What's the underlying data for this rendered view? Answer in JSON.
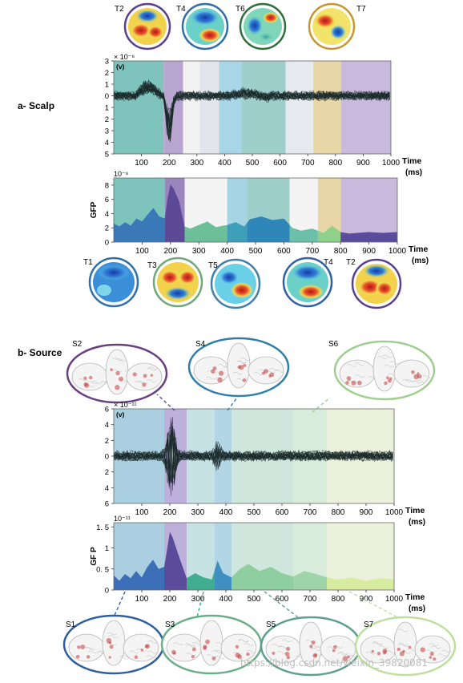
{
  "scalp": {
    "section_label": "a- Scalp",
    "top_maps": [
      {
        "label": "T2",
        "ring": "#5b3f8f"
      },
      {
        "label": "T4",
        "ring": "#2f6fa8"
      },
      {
        "label": "T6",
        "ring": "#2f6f3a"
      },
      {
        "label": "T7",
        "ring": "#c8962e"
      }
    ],
    "bottom_maps": [
      {
        "label": "T1",
        "ring": "#2f6fa8"
      },
      {
        "label": "T3",
        "ring": "#6ea878"
      },
      {
        "label": "T5",
        "ring": "#3f7fa8"
      },
      {
        "label": "T4",
        "ring": "#2f5fa8"
      },
      {
        "label": "T2",
        "ring": "#5b3f8f"
      }
    ]
  },
  "source": {
    "section_label": "b- Source",
    "top_brains": [
      {
        "label": "S2",
        "ring": "#6a3f7f"
      },
      {
        "label": "S4",
        "ring": "#2f7fa8"
      },
      {
        "label": "S6",
        "ring": "#9fcf8f"
      }
    ],
    "bottom_brains": [
      {
        "label": "S1",
        "ring": "#2f5f9f"
      },
      {
        "label": "S3",
        "ring": "#6aaf8a"
      },
      {
        "label": "S5",
        "ring": "#5f9f8f"
      },
      {
        "label": "S7",
        "ring": "#bfdf9f"
      }
    ]
  },
  "chart_data": [
    {
      "type": "line",
      "id": "scalp-eeg",
      "exponent_label": "× 10⁻⁶",
      "ylabel": "(v)",
      "xlabel": "Time",
      "xunit": "(ms)",
      "xlim": [
        0,
        1000
      ],
      "ylim": [
        -5,
        3
      ],
      "xticks": [
        100,
        200,
        300,
        400,
        500,
        600,
        700,
        800,
        900,
        1000
      ],
      "yticks": [
        {
          "v": 3,
          "t": "3"
        },
        {
          "v": 2,
          "t": "2"
        },
        {
          "v": 1,
          "t": "1"
        },
        {
          "v": 0,
          "t": "0"
        },
        {
          "v": -1,
          "t": "1"
        },
        {
          "v": -2,
          "t": "2"
        },
        {
          "v": -3,
          "t": "3"
        },
        {
          "v": -4,
          "t": "4"
        },
        {
          "v": -5,
          "t": "5"
        }
      ],
      "segments": [
        {
          "start": 0,
          "end": 180,
          "color": "#7fc3bd"
        },
        {
          "start": 180,
          "end": 250,
          "color": "#b9a6d0"
        },
        {
          "start": 250,
          "end": 310,
          "color": "#f2f2f2"
        },
        {
          "start": 310,
          "end": 380,
          "color": "#e2e6ea"
        },
        {
          "start": 380,
          "end": 460,
          "color": "#a9d6e6"
        },
        {
          "start": 460,
          "end": 620,
          "color": "#9fcfca"
        },
        {
          "start": 620,
          "end": 720,
          "color": "#e6eaee"
        },
        {
          "start": 720,
          "end": 820,
          "color": "#e8d6a6"
        },
        {
          "start": 820,
          "end": 1000,
          "color": "#c9b9dc"
        }
      ]
    },
    {
      "type": "area",
      "id": "scalp-gfp",
      "exponent_label": "10⁻⁶",
      "ylabel": "GFP",
      "xlabel": "Time",
      "xunit": "(ms)",
      "xlim": [
        0,
        1000
      ],
      "ylim": [
        0,
        9
      ],
      "xticks": [
        100,
        200,
        300,
        400,
        500,
        600,
        700,
        800,
        900,
        1000
      ],
      "yticks": [
        {
          "v": 8,
          "t": "8"
        },
        {
          "v": 6,
          "t": "6"
        },
        {
          "v": 4,
          "t": "4"
        },
        {
          "v": 2,
          "t": "2"
        },
        {
          "v": 0,
          "t": "0"
        }
      ],
      "segments": [
        {
          "start": 0,
          "end": 180,
          "color": "#7fc3bd",
          "fill": "#3a78b8"
        },
        {
          "start": 180,
          "end": 250,
          "color": "#9b85bf",
          "fill": "#5d4a96"
        },
        {
          "start": 250,
          "end": 400,
          "color": "#f4f4f4",
          "fill": "#6cbf99"
        },
        {
          "start": 400,
          "end": 470,
          "color": "#a6d4e4",
          "fill": "#3f9fb8"
        },
        {
          "start": 470,
          "end": 620,
          "color": "#9fcfca",
          "fill": "#2f86b8"
        },
        {
          "start": 620,
          "end": 720,
          "color": "#f4f4f4",
          "fill": "#6cbfa8"
        },
        {
          "start": 720,
          "end": 800,
          "color": "#e8d6a6",
          "fill": "#8fd18a"
        },
        {
          "start": 800,
          "end": 1000,
          "color": "#c9b9dc",
          "fill": "#5a4c9a"
        }
      ],
      "curve": [
        [
          0,
          2.6
        ],
        [
          20,
          2.2
        ],
        [
          40,
          2.8
        ],
        [
          60,
          2.3
        ],
        [
          80,
          3.3
        ],
        [
          100,
          2.9
        ],
        [
          120,
          3.9
        ],
        [
          140,
          4.8
        ],
        [
          160,
          3.6
        ],
        [
          180,
          3.3
        ],
        [
          190,
          6.2
        ],
        [
          200,
          8.1
        ],
        [
          210,
          7.6
        ],
        [
          230,
          5.8
        ],
        [
          250,
          2.2
        ],
        [
          270,
          1.9
        ],
        [
          300,
          2.4
        ],
        [
          330,
          2.9
        ],
        [
          360,
          2.1
        ],
        [
          400,
          2.4
        ],
        [
          430,
          2.8
        ],
        [
          460,
          2.2
        ],
        [
          480,
          3.2
        ],
        [
          520,
          3.6
        ],
        [
          560,
          3.1
        ],
        [
          600,
          3.3
        ],
        [
          630,
          2.0
        ],
        [
          660,
          1.6
        ],
        [
          700,
          1.9
        ],
        [
          740,
          1.3
        ],
        [
          770,
          2.3
        ],
        [
          800,
          1.4
        ],
        [
          830,
          1.2
        ],
        [
          860,
          1.3
        ],
        [
          900,
          1.4
        ],
        [
          950,
          1.3
        ],
        [
          1000,
          1.4
        ]
      ]
    },
    {
      "type": "line",
      "id": "source-signal",
      "exponent_label": "× 10⁻¹¹",
      "ylabel": "(v)",
      "xlabel": "Time",
      "xunit": "(ms)",
      "xlim": [
        0,
        1000
      ],
      "ylim": [
        -6,
        6
      ],
      "xticks": [
        100,
        200,
        300,
        400,
        500,
        600,
        700,
        800,
        900,
        1000
      ],
      "yticks": [
        {
          "v": 6,
          "t": "6"
        },
        {
          "v": 4,
          "t": "4"
        },
        {
          "v": 2,
          "t": "2"
        },
        {
          "v": 0,
          "t": "0"
        },
        {
          "v": -2,
          "t": "2"
        },
        {
          "v": -4,
          "t": "4"
        },
        {
          "v": -6,
          "t": "6"
        }
      ],
      "segments": [
        {
          "start": 0,
          "end": 180,
          "color": "#a9cfe0"
        },
        {
          "start": 180,
          "end": 260,
          "color": "#bdb0dc"
        },
        {
          "start": 260,
          "end": 360,
          "color": "#c7e2e2"
        },
        {
          "start": 360,
          "end": 420,
          "color": "#b3d6e6"
        },
        {
          "start": 420,
          "end": 640,
          "color": "#cfe6dc"
        },
        {
          "start": 640,
          "end": 760,
          "color": "#d8ecdc"
        },
        {
          "start": 760,
          "end": 1000,
          "color": "#ecf1dc"
        }
      ]
    },
    {
      "type": "area",
      "id": "source-gfp",
      "exponent_label": "10⁻¹¹",
      "ylabel": "GF P",
      "xlabel": "Time",
      "xunit": "(ms)",
      "xlim": [
        0,
        1000
      ],
      "ylim": [
        0,
        1.6
      ],
      "xticks": [
        100,
        200,
        300,
        400,
        500,
        600,
        700,
        800,
        900,
        1000
      ],
      "yticks": [
        {
          "v": 1.5,
          "t": "1. 5"
        },
        {
          "v": 1,
          "t": "1"
        },
        {
          "v": 0.5,
          "t": "0. 5"
        },
        {
          "v": 0,
          "t": "0"
        }
      ],
      "segments": [
        {
          "start": 0,
          "end": 180,
          "color": "#a9cfe0",
          "fill": "#3b6fb8"
        },
        {
          "start": 180,
          "end": 260,
          "color": "#bdb0dc",
          "fill": "#5a4c9a"
        },
        {
          "start": 260,
          "end": 360,
          "color": "#c7e2e2",
          "fill": "#3fae8f"
        },
        {
          "start": 360,
          "end": 420,
          "color": "#b3d6e6",
          "fill": "#3f8fc0"
        },
        {
          "start": 420,
          "end": 640,
          "color": "#cfe6dc",
          "fill": "#8fcf9f"
        },
        {
          "start": 640,
          "end": 760,
          "color": "#d8ecdc",
          "fill": "#9fd4a8"
        },
        {
          "start": 760,
          "end": 1000,
          "color": "#ecf1dc",
          "fill": "#d8ec9f"
        }
      ],
      "curve": [
        [
          0,
          0.35
        ],
        [
          20,
          0.22
        ],
        [
          40,
          0.38
        ],
        [
          60,
          0.28
        ],
        [
          80,
          0.45
        ],
        [
          100,
          0.3
        ],
        [
          120,
          0.55
        ],
        [
          140,
          0.72
        ],
        [
          160,
          0.5
        ],
        [
          180,
          0.55
        ],
        [
          190,
          0.95
        ],
        [
          200,
          1.38
        ],
        [
          210,
          1.25
        ],
        [
          230,
          0.85
        ],
        [
          260,
          0.28
        ],
        [
          290,
          0.4
        ],
        [
          320,
          0.3
        ],
        [
          350,
          0.25
        ],
        [
          370,
          0.7
        ],
        [
          390,
          0.4
        ],
        [
          420,
          0.3
        ],
        [
          450,
          0.5
        ],
        [
          480,
          0.62
        ],
        [
          520,
          0.45
        ],
        [
          560,
          0.55
        ],
        [
          600,
          0.4
        ],
        [
          640,
          0.32
        ],
        [
          680,
          0.45
        ],
        [
          720,
          0.38
        ],
        [
          760,
          0.3
        ],
        [
          800,
          0.25
        ],
        [
          850,
          0.3
        ],
        [
          900,
          0.22
        ],
        [
          950,
          0.28
        ],
        [
          1000,
          0.25
        ]
      ]
    }
  ],
  "watermark": "https://blog.csdn.net/weixin_39820081"
}
